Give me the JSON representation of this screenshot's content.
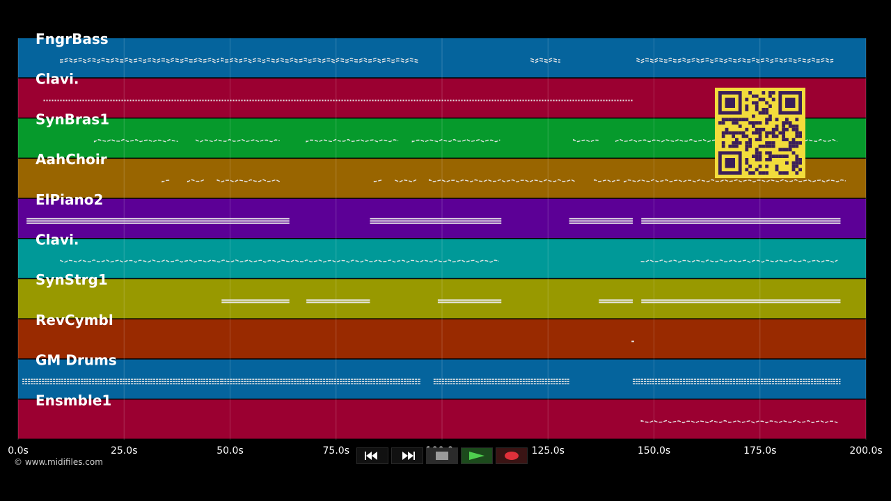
{
  "timeline": {
    "ticks": [
      "0.0s",
      "25.0s",
      "50.0s",
      "75.0s",
      "100.0s",
      "125.0s",
      "150.0s",
      "175.0s",
      "200.0s"
    ],
    "duration_seconds": 200
  },
  "tracks": [
    {
      "name": "FngrBass",
      "color": "#05649d",
      "segments": [
        [
          10,
          48
        ],
        [
          48,
          95
        ],
        [
          121,
          128
        ],
        [
          146,
          193
        ]
      ],
      "rows": 2,
      "style": "wavy"
    },
    {
      "name": "Clavi.",
      "color": "#9b0031",
      "segments": [
        [
          6,
          145
        ]
      ],
      "rows": 1,
      "style": "dotted"
    },
    {
      "name": "SynBras1",
      "color": "#069a2c",
      "segments": [
        [
          18,
          38
        ],
        [
          42,
          62
        ],
        [
          68,
          90
        ],
        [
          93,
          114
        ],
        [
          131,
          137
        ],
        [
          141,
          194
        ]
      ],
      "rows": 1,
      "style": "wavy"
    },
    {
      "name": "AahChoir",
      "color": "#996500",
      "segments": [
        [
          34,
          36
        ],
        [
          40,
          44
        ],
        [
          47,
          62
        ],
        [
          84,
          86
        ],
        [
          89,
          94
        ],
        [
          97,
          132
        ],
        [
          136,
          142
        ],
        [
          143,
          196
        ]
      ],
      "rows": 1,
      "style": "wavy"
    },
    {
      "name": "ElPiano2",
      "color": "#5c0096",
      "segments": [
        [
          2,
          64
        ],
        [
          83,
          114
        ],
        [
          130,
          145
        ],
        [
          147,
          194
        ]
      ],
      "rows": 3,
      "style": "block"
    },
    {
      "name": "Clavi.",
      "color": "#009998",
      "segments": [
        [
          10,
          114
        ],
        [
          147,
          194
        ]
      ],
      "rows": 1,
      "style": "wavy"
    },
    {
      "name": "SynStrg1",
      "color": "#989900",
      "segments": [
        [
          48,
          64
        ],
        [
          68,
          83
        ],
        [
          99,
          114
        ],
        [
          137,
          145
        ],
        [
          147,
          194
        ]
      ],
      "rows": 2,
      "style": "block"
    },
    {
      "name": "RevCymbl",
      "color": "#992a00",
      "segments": [
        [
          144.7,
          145.3
        ]
      ],
      "rows": 1,
      "style": "block"
    },
    {
      "name": "GM Drums",
      "color": "#05649d",
      "segments": [
        [
          1,
          48
        ],
        [
          48,
          68
        ],
        [
          68,
          95
        ],
        [
          98,
          130
        ],
        [
          145,
          194
        ]
      ],
      "rows": 3,
      "style": "drums"
    },
    {
      "name": "Ensmble1",
      "color": "#9b0031",
      "segments": [
        [
          147,
          194
        ]
      ],
      "rows": 1,
      "style": "wavy"
    }
  ],
  "footer": {
    "credit": "© www.midifiles.com"
  },
  "transport": {
    "rewind": "rewind-icon",
    "fast_forward": "fast-forward-icon",
    "stop": "stop-icon",
    "play": "play-icon",
    "record": "record-icon",
    "play_color": "#4fcf4f",
    "record_color": "#e0303a"
  },
  "overlay": {
    "qr_code": "qr-code-icon"
  }
}
